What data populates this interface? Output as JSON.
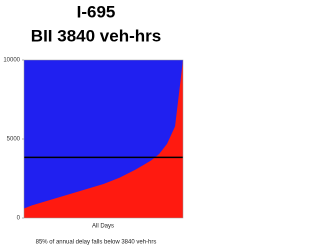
{
  "chart_data": {
    "type": "area",
    "title": "I-695",
    "subtitle": "BII 3840 veh-hrs",
    "xlabel": "All Days",
    "footnote": "85% of annual delay falls below 3840 veh-hrs",
    "series": [
      {
        "color": "#ff1a10",
        "values": [
          600,
          800,
          950,
          1100,
          1250,
          1400,
          1550,
          1700,
          1850,
          2000,
          2150,
          2350,
          2550,
          2800,
          3050,
          3350,
          3650,
          4050,
          4700,
          5800,
          10000
        ]
      }
    ],
    "background_color": "#2020f0",
    "hline": 3840,
    "ylim": [
      0,
      10000
    ],
    "yticks": [
      0,
      5000,
      10000
    ]
  }
}
